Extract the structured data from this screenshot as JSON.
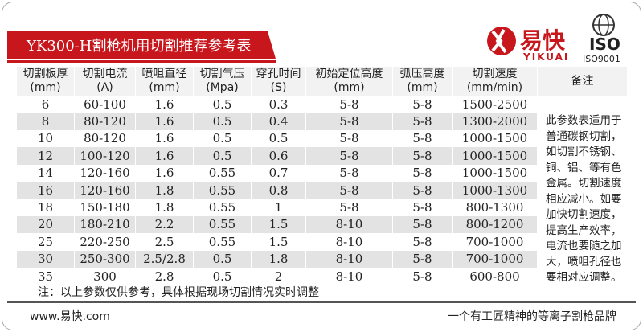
{
  "header": {
    "title": "YK300-H割枪机用切割推荐参考表",
    "logo_name": "易快",
    "logo_latin": "YIKUAI",
    "iso_mark": "ISO",
    "iso_cert": "ISO9001"
  },
  "table": {
    "columns": [
      [
        "切割板厚",
        "(mm)"
      ],
      [
        "切割电流",
        "(A)"
      ],
      [
        "喷咀直径",
        "(mm)"
      ],
      [
        "切割气压",
        "(Mpa)"
      ],
      [
        "穿孔时间",
        "(S)"
      ],
      [
        "初始定位高度",
        "(mm)"
      ],
      [
        "弧压高度",
        "(mm)"
      ],
      [
        "切割速度",
        "(mm/min)"
      ],
      [
        "备注"
      ]
    ],
    "rows": [
      [
        "6",
        "60-100",
        "1.6",
        "0.5",
        "0.3",
        "5-8",
        "5-8",
        "1500-2500"
      ],
      [
        "8",
        "80-120",
        "1.6",
        "0.5",
        "0.4",
        "5-8",
        "5-8",
        "1300-2000"
      ],
      [
        "10",
        "80-120",
        "1.6",
        "0.5",
        "0.5",
        "5-8",
        "5-8",
        "1000-1500"
      ],
      [
        "12",
        "100-120",
        "1.6",
        "0.5",
        "0.6",
        "5-8",
        "5-8",
        "1000-1500"
      ],
      [
        "14",
        "120-160",
        "1.6",
        "0.55",
        "0.7",
        "5-8",
        "5-8",
        "1000-1500"
      ],
      [
        "16",
        "120-160",
        "1.8",
        "0.55",
        "0.8",
        "5-8",
        "5-8",
        "1000-1300"
      ],
      [
        "18",
        "150-180",
        "1.8",
        "0.55",
        "1",
        "5-8",
        "5-8",
        "800-1300"
      ],
      [
        "20",
        "180-210",
        "2.2",
        "0.55",
        "1.5",
        "8-10",
        "5-8",
        "800-1200"
      ],
      [
        "25",
        "220-250",
        "2.5",
        "0.55",
        "1.5",
        "8-10",
        "5-8",
        "700-1000"
      ],
      [
        "30",
        "250-300",
        "2.5/2.8",
        "0.5",
        "1.8",
        "8-10",
        "5-8",
        "700-1000"
      ],
      [
        "35",
        "300",
        "2.8",
        "0.5",
        "2",
        "8-10",
        "5-8",
        "600-800"
      ]
    ],
    "remark": [
      "此参数表适用于",
      "普通碳钢切割，",
      "如切割不锈钢、",
      "铜、铝、等有色",
      "金属。切割速度",
      "相应减小。如要",
      "加快切割速度，",
      "提高生产效率，",
      "电流也要随之加",
      "大，喷咀孔径也",
      "要相对应调整。"
    ]
  },
  "note": "注：以上参数仅供参考，具体根据现场切割情况实时调整",
  "footer": {
    "website": "www.易快.com",
    "slogan": "一个有工匠精神的等离子割枪品牌"
  }
}
